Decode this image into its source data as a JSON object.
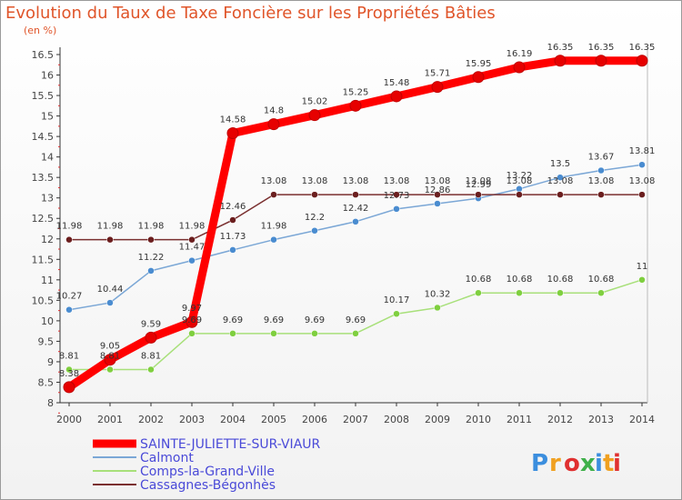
{
  "chart_data": {
    "type": "line",
    "title": "Evolution du Taux de Taxe Foncière sur les Propriétés Bâties",
    "unit": "(en %)",
    "x": [
      "2000",
      "2001",
      "2002",
      "2003",
      "2004",
      "2005",
      "2006",
      "2007",
      "2008",
      "2009",
      "2010",
      "2011",
      "2012",
      "2013",
      "2014"
    ],
    "yticks": [
      "8",
      "8.5",
      "9",
      "9.5",
      "10",
      "10.5",
      "11",
      "11.5",
      "12",
      "12.5",
      "13",
      "13.5",
      "14",
      "14.5",
      "15",
      "15.5",
      "16",
      "16.5"
    ],
    "ylim": [
      8,
      16.5
    ],
    "grid": false,
    "legend_position": "bottom-left",
    "series": [
      {
        "name": "SAINTE-JULIETTE-SUR-VIAUR",
        "color": "#ff0000",
        "marker": "#e60000",
        "emphasis": true,
        "values": [
          8.38,
          9.05,
          9.59,
          9.97,
          14.58,
          14.8,
          15.02,
          15.25,
          15.48,
          15.71,
          15.95,
          16.19,
          16.35,
          16.35,
          16.35
        ],
        "labels": [
          "8.38",
          "9.05",
          "9.59",
          "9.97",
          "14.58",
          "14.8",
          "15.02",
          "15.25",
          "15.48",
          "15.71",
          "15.95",
          "16.19",
          "16.35",
          "16.35",
          "16.35"
        ]
      },
      {
        "name": "Calmont",
        "color": "#7ba7d6",
        "marker": "#4a8cd0",
        "emphasis": false,
        "values": [
          10.27,
          10.44,
          11.22,
          11.47,
          11.73,
          11.98,
          12.2,
          12.42,
          12.73,
          12.86,
          12.99,
          13.22,
          13.5,
          13.67,
          13.81
        ],
        "labels": [
          "10.27",
          "10.44",
          "11.22",
          "11.47",
          "11.73",
          "11.98",
          "12.2",
          "12.42",
          "12.73",
          "12.86",
          "12.99",
          "13.22",
          "13.5",
          "13.67",
          "13.81"
        ]
      },
      {
        "name": "Comps-la-Grand-Ville",
        "color": "#a8e07a",
        "marker": "#7fcf3f",
        "emphasis": false,
        "values": [
          8.81,
          8.81,
          8.81,
          9.69,
          9.69,
          9.69,
          9.69,
          9.69,
          10.17,
          10.32,
          10.68,
          10.68,
          10.68,
          10.68,
          11
        ],
        "labels": [
          "8.81",
          "8.81",
          "8.81",
          "9.69",
          "9.69",
          "9.69",
          "9.69",
          "9.69",
          "10.17",
          "10.32",
          "10.68",
          "10.68",
          "10.68",
          "10.68",
          "11"
        ]
      },
      {
        "name": "Cassagnes-Bégonhès",
        "color": "#7a2f2f",
        "marker": "#6b1e1e",
        "emphasis": false,
        "values": [
          11.98,
          11.98,
          11.98,
          11.98,
          12.46,
          13.08,
          13.08,
          13.08,
          13.08,
          13.08,
          13.08,
          13.08,
          13.08,
          13.08,
          13.08
        ],
        "labels": [
          "11.98",
          "11.98",
          "11.98",
          "11.98",
          "12.46",
          "13.08",
          "13.08",
          "13.08",
          "13.08",
          "13.08",
          "13.08",
          "13.08",
          "13.08",
          "13.08",
          "13.08"
        ]
      }
    ],
    "legend_colors": {
      "text": "#4a4ad8"
    }
  },
  "brand": {
    "logo_text": "Proxiti",
    "colors": [
      "#3b8ede",
      "#f0a020",
      "#e03030",
      "#3fb04a",
      "#3b8ede",
      "#f0a020",
      "#e03030"
    ]
  }
}
